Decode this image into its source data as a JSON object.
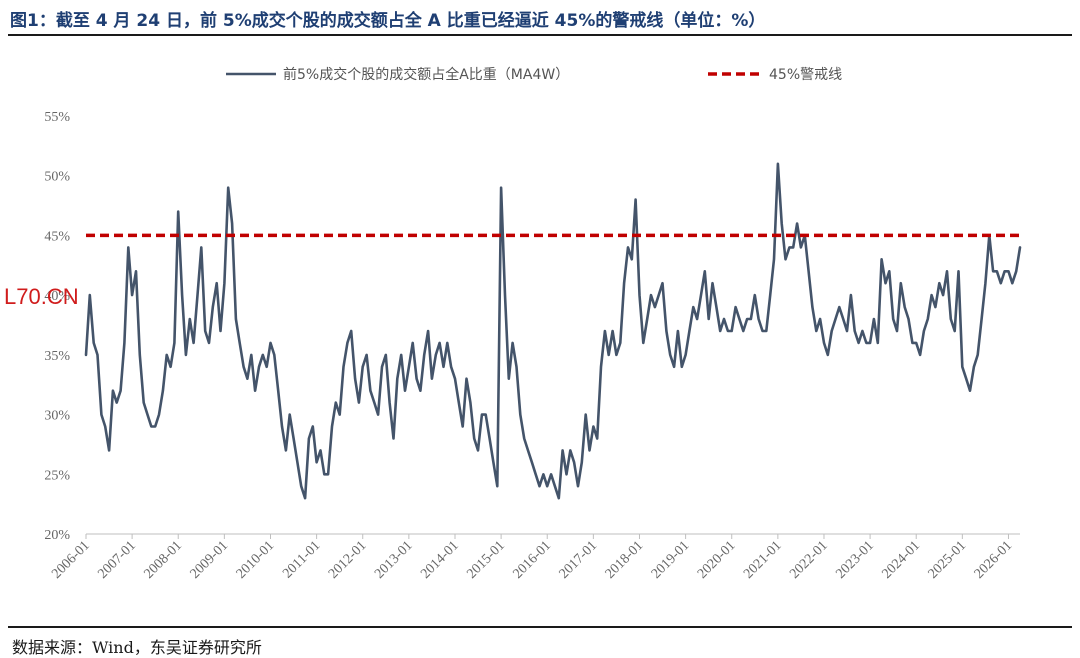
{
  "header": {
    "title": "图1：截至 4 月 24 日，前 5%成交个股的成交额占全 A 比重已经逼近 45%的警戒线（单位：%）"
  },
  "footer": {
    "source": "数据来源：Wind，东吴证券研究所"
  },
  "watermark": {
    "text": "L70.CN"
  },
  "colors": {
    "series": "#44546a",
    "threshold": "#c00000",
    "title": "#1f3f73"
  },
  "chart_data": {
    "type": "line",
    "title": "",
    "xlabel": "",
    "ylabel": "",
    "ylim": [
      20,
      55
    ],
    "xlim": [
      "2006-01",
      "2026-04"
    ],
    "yticks": [
      "20%",
      "25%",
      "30%",
      "35%",
      "40%",
      "45%",
      "50%",
      "55%"
    ],
    "xticks": [
      "2006-01",
      "2007-01",
      "2008-01",
      "2009-01",
      "2010-01",
      "2011-01",
      "2012-01",
      "2013-01",
      "2014-01",
      "2015-01",
      "2016-01",
      "2017-01",
      "2018-01",
      "2019-01",
      "2020-01",
      "2021-01",
      "2022-01",
      "2023-01",
      "2024-01",
      "2025-01",
      "2026-01"
    ],
    "legend": {
      "position": "top"
    },
    "grid": false,
    "series": [
      {
        "name": "前5%成交个股的成交额占全A比重（MA4W）",
        "style": "solid",
        "color": "#44546a",
        "points": [
          [
            "2006-01",
            35
          ],
          [
            "2006-02",
            40
          ],
          [
            "2006-03",
            36
          ],
          [
            "2006-04",
            35
          ],
          [
            "2006-05",
            30
          ],
          [
            "2006-06",
            29
          ],
          [
            "2006-07",
            27
          ],
          [
            "2006-08",
            32
          ],
          [
            "2006-09",
            31
          ],
          [
            "2006-10",
            32
          ],
          [
            "2006-11",
            36
          ],
          [
            "2006-12",
            44
          ],
          [
            "2007-01",
            40
          ],
          [
            "2007-02",
            42
          ],
          [
            "2007-03",
            35
          ],
          [
            "2007-04",
            31
          ],
          [
            "2007-05",
            30
          ],
          [
            "2007-06",
            29
          ],
          [
            "2007-07",
            29
          ],
          [
            "2007-08",
            30
          ],
          [
            "2007-09",
            32
          ],
          [
            "2007-10",
            35
          ],
          [
            "2007-11",
            34
          ],
          [
            "2007-12",
            36
          ],
          [
            "2008-01",
            47
          ],
          [
            "2008-02",
            40
          ],
          [
            "2008-03",
            35
          ],
          [
            "2008-04",
            38
          ],
          [
            "2008-05",
            36
          ],
          [
            "2008-06",
            40
          ],
          [
            "2008-07",
            44
          ],
          [
            "2008-08",
            37
          ],
          [
            "2008-09",
            36
          ],
          [
            "2008-10",
            39
          ],
          [
            "2008-11",
            41
          ],
          [
            "2008-12",
            37
          ],
          [
            "2009-01",
            41
          ],
          [
            "2009-02",
            49
          ],
          [
            "2009-03",
            46
          ],
          [
            "2009-04",
            38
          ],
          [
            "2009-05",
            36
          ],
          [
            "2009-06",
            34
          ],
          [
            "2009-07",
            33
          ],
          [
            "2009-08",
            35
          ],
          [
            "2009-09",
            32
          ],
          [
            "2009-10",
            34
          ],
          [
            "2009-11",
            35
          ],
          [
            "2009-12",
            34
          ],
          [
            "2010-01",
            36
          ],
          [
            "2010-02",
            35
          ],
          [
            "2010-03",
            32
          ],
          [
            "2010-04",
            29
          ],
          [
            "2010-05",
            27
          ],
          [
            "2010-06",
            30
          ],
          [
            "2010-07",
            28
          ],
          [
            "2010-08",
            26
          ],
          [
            "2010-09",
            24
          ],
          [
            "2010-10",
            23
          ],
          [
            "2010-11",
            28
          ],
          [
            "2010-12",
            29
          ],
          [
            "2011-01",
            26
          ],
          [
            "2011-02",
            27
          ],
          [
            "2011-03",
            25
          ],
          [
            "2011-04",
            25
          ],
          [
            "2011-05",
            29
          ],
          [
            "2011-06",
            31
          ],
          [
            "2011-07",
            30
          ],
          [
            "2011-08",
            34
          ],
          [
            "2011-09",
            36
          ],
          [
            "2011-10",
            37
          ],
          [
            "2011-11",
            33
          ],
          [
            "2011-12",
            31
          ],
          [
            "2012-01",
            34
          ],
          [
            "2012-02",
            35
          ],
          [
            "2012-03",
            32
          ],
          [
            "2012-04",
            31
          ],
          [
            "2012-05",
            30
          ],
          [
            "2012-06",
            34
          ],
          [
            "2012-07",
            35
          ],
          [
            "2012-08",
            31
          ],
          [
            "2012-09",
            28
          ],
          [
            "2012-10",
            33
          ],
          [
            "2012-11",
            35
          ],
          [
            "2012-12",
            32
          ],
          [
            "2013-01",
            34
          ],
          [
            "2013-02",
            36
          ],
          [
            "2013-03",
            33
          ],
          [
            "2013-04",
            32
          ],
          [
            "2013-05",
            35
          ],
          [
            "2013-06",
            37
          ],
          [
            "2013-07",
            33
          ],
          [
            "2013-08",
            35
          ],
          [
            "2013-09",
            36
          ],
          [
            "2013-10",
            34
          ],
          [
            "2013-11",
            36
          ],
          [
            "2013-12",
            34
          ],
          [
            "2014-01",
            33
          ],
          [
            "2014-02",
            31
          ],
          [
            "2014-03",
            29
          ],
          [
            "2014-04",
            33
          ],
          [
            "2014-05",
            31
          ],
          [
            "2014-06",
            28
          ],
          [
            "2014-07",
            27
          ],
          [
            "2014-08",
            30
          ],
          [
            "2014-09",
            30
          ],
          [
            "2014-10",
            28
          ],
          [
            "2014-11",
            26
          ],
          [
            "2014-12",
            24
          ],
          [
            "2015-01",
            49
          ],
          [
            "2015-02",
            40
          ],
          [
            "2015-03",
            33
          ],
          [
            "2015-04",
            36
          ],
          [
            "2015-05",
            34
          ],
          [
            "2015-06",
            30
          ],
          [
            "2015-07",
            28
          ],
          [
            "2015-08",
            27
          ],
          [
            "2015-09",
            26
          ],
          [
            "2015-10",
            25
          ],
          [
            "2015-11",
            24
          ],
          [
            "2015-12",
            25
          ],
          [
            "2016-01",
            24
          ],
          [
            "2016-02",
            25
          ],
          [
            "2016-03",
            24
          ],
          [
            "2016-04",
            23
          ],
          [
            "2016-05",
            27
          ],
          [
            "2016-06",
            25
          ],
          [
            "2016-07",
            27
          ],
          [
            "2016-08",
            26
          ],
          [
            "2016-09",
            24
          ],
          [
            "2016-10",
            26
          ],
          [
            "2016-11",
            30
          ],
          [
            "2016-12",
            27
          ],
          [
            "2017-01",
            29
          ],
          [
            "2017-02",
            28
          ],
          [
            "2017-03",
            34
          ],
          [
            "2017-04",
            37
          ],
          [
            "2017-05",
            35
          ],
          [
            "2017-06",
            37
          ],
          [
            "2017-07",
            35
          ],
          [
            "2017-08",
            36
          ],
          [
            "2017-09",
            41
          ],
          [
            "2017-10",
            44
          ],
          [
            "2017-11",
            43
          ],
          [
            "2017-12",
            48
          ],
          [
            "2018-01",
            40
          ],
          [
            "2018-02",
            36
          ],
          [
            "2018-03",
            38
          ],
          [
            "2018-04",
            40
          ],
          [
            "2018-05",
            39
          ],
          [
            "2018-06",
            40
          ],
          [
            "2018-07",
            41
          ],
          [
            "2018-08",
            37
          ],
          [
            "2018-09",
            35
          ],
          [
            "2018-10",
            34
          ],
          [
            "2018-11",
            37
          ],
          [
            "2018-12",
            34
          ],
          [
            "2019-01",
            35
          ],
          [
            "2019-02",
            37
          ],
          [
            "2019-03",
            39
          ],
          [
            "2019-04",
            38
          ],
          [
            "2019-05",
            40
          ],
          [
            "2019-06",
            42
          ],
          [
            "2019-07",
            38
          ],
          [
            "2019-08",
            41
          ],
          [
            "2019-09",
            39
          ],
          [
            "2019-10",
            37
          ],
          [
            "2019-11",
            38
          ],
          [
            "2019-12",
            37
          ],
          [
            "2020-01",
            37
          ],
          [
            "2020-02",
            39
          ],
          [
            "2020-03",
            38
          ],
          [
            "2020-04",
            37
          ],
          [
            "2020-05",
            38
          ],
          [
            "2020-06",
            38
          ],
          [
            "2020-07",
            40
          ],
          [
            "2020-08",
            38
          ],
          [
            "2020-09",
            37
          ],
          [
            "2020-10",
            37
          ],
          [
            "2020-11",
            40
          ],
          [
            "2020-12",
            43
          ],
          [
            "2021-01",
            51
          ],
          [
            "2021-02",
            46
          ],
          [
            "2021-03",
            43
          ],
          [
            "2021-04",
            44
          ],
          [
            "2021-05",
            44
          ],
          [
            "2021-06",
            46
          ],
          [
            "2021-07",
            44
          ],
          [
            "2021-08",
            45
          ],
          [
            "2021-09",
            42
          ],
          [
            "2021-10",
            39
          ],
          [
            "2021-11",
            37
          ],
          [
            "2021-12",
            38
          ],
          [
            "2022-01",
            36
          ],
          [
            "2022-02",
            35
          ],
          [
            "2022-03",
            37
          ],
          [
            "2022-04",
            38
          ],
          [
            "2022-05",
            39
          ],
          [
            "2022-06",
            38
          ],
          [
            "2022-07",
            37
          ],
          [
            "2022-08",
            40
          ],
          [
            "2022-09",
            37
          ],
          [
            "2022-10",
            36
          ],
          [
            "2022-11",
            37
          ],
          [
            "2022-12",
            36
          ],
          [
            "2023-01",
            36
          ],
          [
            "2023-02",
            38
          ],
          [
            "2023-03",
            36
          ],
          [
            "2023-04",
            43
          ],
          [
            "2023-05",
            41
          ],
          [
            "2023-06",
            42
          ],
          [
            "2023-07",
            38
          ],
          [
            "2023-08",
            37
          ],
          [
            "2023-09",
            41
          ],
          [
            "2023-10",
            39
          ],
          [
            "2023-11",
            38
          ],
          [
            "2023-12",
            36
          ],
          [
            "2024-01",
            36
          ],
          [
            "2024-02",
            35
          ],
          [
            "2024-03",
            37
          ],
          [
            "2024-04",
            38
          ],
          [
            "2024-05",
            40
          ],
          [
            "2024-06",
            39
          ],
          [
            "2024-07",
            41
          ],
          [
            "2024-08",
            40
          ],
          [
            "2024-09",
            42
          ],
          [
            "2024-10",
            38
          ],
          [
            "2024-11",
            37
          ],
          [
            "2024-12",
            42
          ],
          [
            "2025-01",
            34
          ],
          [
            "2025-02",
            33
          ],
          [
            "2025-03",
            32
          ],
          [
            "2025-04",
            34
          ],
          [
            "2025-05",
            35
          ],
          [
            "2025-06",
            38
          ],
          [
            "2025-07",
            41
          ],
          [
            "2025-08",
            45
          ],
          [
            "2025-09",
            42
          ],
          [
            "2025-10",
            42
          ],
          [
            "2025-11",
            41
          ],
          [
            "2025-12",
            42
          ],
          [
            "2026-01",
            42
          ],
          [
            "2026-02",
            41
          ],
          [
            "2026-03",
            42
          ],
          [
            "2026-04",
            44
          ]
        ]
      },
      {
        "name": "45%警戒线",
        "style": "dashed",
        "color": "#c00000",
        "points": [
          [
            "2006-01",
            45
          ],
          [
            "2026-04",
            45
          ]
        ]
      }
    ]
  }
}
